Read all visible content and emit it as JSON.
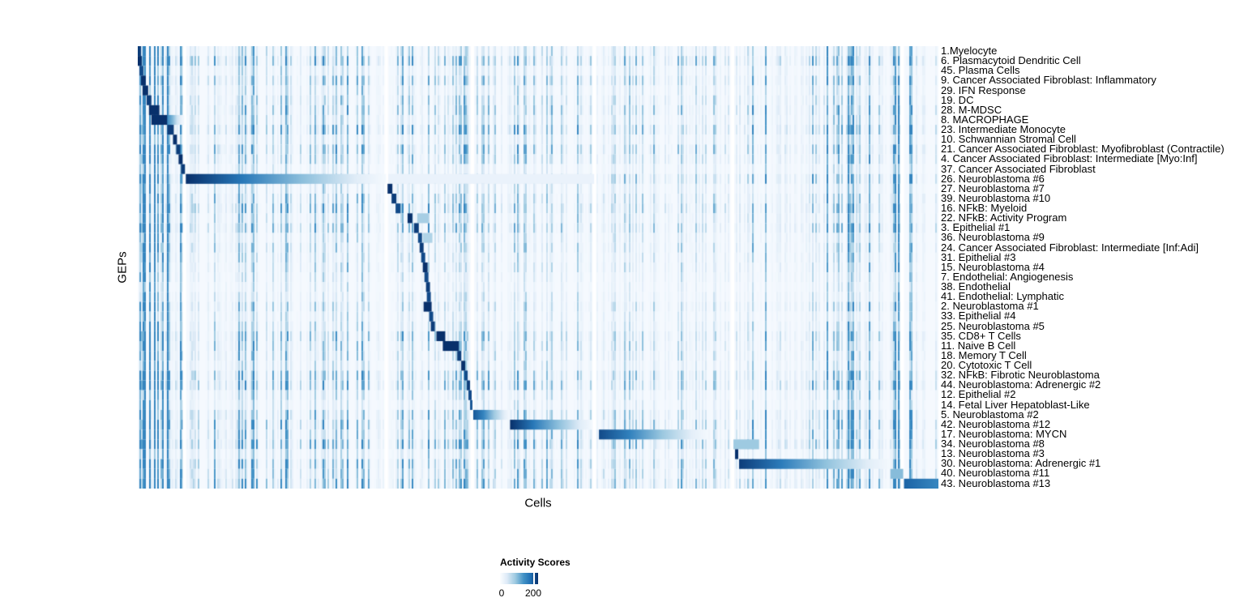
{
  "chart_data": {
    "type": "heatmap",
    "title": "",
    "xlabel": "Cells",
    "ylabel": "GEPs",
    "legend": {
      "title": "Activity Scores",
      "tick_labels": [
        "0",
        "200"
      ],
      "tick_values": [
        0,
        200
      ]
    },
    "colormap": {
      "name": "Blues",
      "low": "#f7fbff",
      "high": "#08306b"
    },
    "value_range": [
      0,
      220
    ],
    "rows": [
      "1.Myelocyte",
      "6. Plasmacytoid Dendritic Cell",
      "45. Plasma Cells",
      "9. Cancer Associated Fibroblast: Inflammatory",
      "29. IFN Response",
      "19. DC",
      "28. M-MDSC",
      "8. MACROPHAGE",
      "23. Intermediate Monocyte",
      "10. Schwannian Stromal Cell",
      "21. Cancer Associated Fibroblast: Myofibroblast (Contractile)",
      "4. Cancer Associated Fibroblast: Intermediate [Myo:Inf]",
      "37. Cancer Associated Fibroblast",
      "26. Neuroblastoma #6",
      "27. Neuroblastoma #7",
      "39. Neuroblastoma #10",
      "16. NFkB: Myeloid",
      "22. NFkB: Activity Program",
      "3. Epithelial #1",
      "36. Neuroblastoma #9",
      "24. Cancer Associated Fibroblast: Intermediate [Inf:Adi]",
      "31. Epithelial #3",
      "15. Neuroblastoma #4",
      "7. Endothelial: Angiogenesis",
      "38. Endothelial",
      "41. Endothelial: Lymphatic",
      "2. Neuroblastoma #1",
      "33. Epithelial #4",
      "25. Neuroblastoma #5",
      "35. CD8+ T Cells",
      "11. Naive B Cell",
      "18. Memory T Cell",
      "20. Cytotoxic T Cell",
      "32. NFkB: Fibrotic Neuroblastoma",
      "44. Neuroblastoma: Adrenergic #2",
      "12. Epithelial #2",
      "14. Fetal Liver Hepatoblast-Like",
      "5. Neuroblastoma #2",
      "42. Neuroblastoma #12",
      "17. Neuroblastoma: MYCN",
      "34. Neuroblastoma #8",
      "13. Neuroblastoma #3",
      "30. Neuroblastoma: Adrenergic #1",
      "40. Neuroblastoma #11",
      "43. Neuroblastoma #13"
    ],
    "row_blocks": [
      {
        "row": 0,
        "x0": 0.0,
        "x1": 0.004,
        "v": 0.95
      },
      {
        "row": 1,
        "x0": 0.0,
        "x1": 0.005,
        "v": 1.0
      },
      {
        "row": 2,
        "x0": 0.002,
        "x1": 0.007,
        "v": 0.9
      },
      {
        "row": 3,
        "x0": 0.004,
        "x1": 0.01,
        "v": 1.0
      },
      {
        "row": 4,
        "x0": 0.006,
        "x1": 0.013,
        "v": 1.0
      },
      {
        "row": 5,
        "x0": 0.011,
        "x1": 0.017,
        "v": 0.95
      },
      {
        "row": 6,
        "x0": 0.014,
        "x1": 0.027,
        "v": 1.0
      },
      {
        "row": 7,
        "x0": 0.017,
        "x1": 0.037,
        "v": 1.0
      },
      {
        "row": 7,
        "x0": 0.037,
        "x1": 0.058,
        "v": 0.55,
        "fade": true
      },
      {
        "row": 8,
        "x0": 0.037,
        "x1": 0.045,
        "v": 0.95
      },
      {
        "row": 9,
        "x0": 0.044,
        "x1": 0.049,
        "v": 1.0
      },
      {
        "row": 10,
        "x0": 0.048,
        "x1": 0.053,
        "v": 0.95
      },
      {
        "row": 11,
        "x0": 0.051,
        "x1": 0.056,
        "v": 1.0
      },
      {
        "row": 12,
        "x0": 0.054,
        "x1": 0.059,
        "v": 0.95
      },
      {
        "row": 13,
        "x0": 0.06,
        "x1": 0.31,
        "v": 1.0,
        "fade": true
      },
      {
        "row": 13,
        "x0": 0.313,
        "x1": 0.57,
        "v": 0.08
      },
      {
        "row": 14,
        "x0": 0.312,
        "x1": 0.318,
        "v": 1.0
      },
      {
        "row": 15,
        "x0": 0.317,
        "x1": 0.323,
        "v": 0.95
      },
      {
        "row": 16,
        "x0": 0.322,
        "x1": 0.328,
        "v": 0.9
      },
      {
        "row": 17,
        "x0": 0.337,
        "x1": 0.343,
        "v": 1.0
      },
      {
        "row": 17,
        "x0": 0.349,
        "x1": 0.363,
        "v": 0.28
      },
      {
        "row": 18,
        "x0": 0.345,
        "x1": 0.351,
        "v": 0.95
      },
      {
        "row": 19,
        "x0": 0.35,
        "x1": 0.355,
        "v": 0.9
      },
      {
        "row": 19,
        "x0": 0.356,
        "x1": 0.368,
        "v": 0.26
      },
      {
        "row": 20,
        "x0": 0.352,
        "x1": 0.357,
        "v": 0.95
      },
      {
        "row": 21,
        "x0": 0.354,
        "x1": 0.359,
        "v": 0.9
      },
      {
        "row": 22,
        "x0": 0.356,
        "x1": 0.362,
        "v": 1.0
      },
      {
        "row": 23,
        "x0": 0.358,
        "x1": 0.363,
        "v": 0.9
      },
      {
        "row": 24,
        "x0": 0.36,
        "x1": 0.365,
        "v": 0.95
      },
      {
        "row": 25,
        "x0": 0.361,
        "x1": 0.366,
        "v": 0.9
      },
      {
        "row": 26,
        "x0": 0.357,
        "x1": 0.367,
        "v": 1.0
      },
      {
        "row": 27,
        "x0": 0.364,
        "x1": 0.369,
        "v": 0.9
      },
      {
        "row": 28,
        "x0": 0.366,
        "x1": 0.371,
        "v": 0.95
      },
      {
        "row": 29,
        "x0": 0.373,
        "x1": 0.384,
        "v": 1.0
      },
      {
        "row": 30,
        "x0": 0.381,
        "x1": 0.401,
        "v": 1.0
      },
      {
        "row": 31,
        "x0": 0.399,
        "x1": 0.404,
        "v": 0.95
      },
      {
        "row": 32,
        "x0": 0.404,
        "x1": 0.409,
        "v": 1.0
      },
      {
        "row": 33,
        "x0": 0.408,
        "x1": 0.412,
        "v": 0.9
      },
      {
        "row": 34,
        "x0": 0.411,
        "x1": 0.415,
        "v": 0.95
      },
      {
        "row": 35,
        "x0": 0.413,
        "x1": 0.417,
        "v": 0.9
      },
      {
        "row": 36,
        "x0": 0.415,
        "x1": 0.418,
        "v": 0.85
      },
      {
        "row": 37,
        "x0": 0.419,
        "x1": 0.465,
        "v": 0.85,
        "fade": true
      },
      {
        "row": 38,
        "x0": 0.465,
        "x1": 0.568,
        "v": 1.0,
        "fade": true
      },
      {
        "row": 39,
        "x0": 0.576,
        "x1": 0.712,
        "v": 0.9,
        "fade": true
      },
      {
        "row": 40,
        "x0": 0.744,
        "x1": 0.776,
        "v": 0.3
      },
      {
        "row": 41,
        "x0": 0.746,
        "x1": 0.75,
        "v": 1.0
      },
      {
        "row": 42,
        "x0": 0.751,
        "x1": 0.94,
        "v": 0.95,
        "fade": true
      },
      {
        "row": 43,
        "x0": 0.94,
        "x1": 0.956,
        "v": 0.35
      },
      {
        "row": 44,
        "x0": 0.957,
        "x1": 1.12,
        "v": 0.8,
        "fade": true
      }
    ],
    "column_gaps": [
      0.058,
      0.31,
      0.4175,
      0.57,
      0.7425,
      0.9545
    ],
    "row_texture": [
      0.35,
      0.55,
      0.3,
      0.45,
      0.3,
      0.4,
      0.45,
      0.35,
      0.55,
      0.3,
      0.5,
      0.4,
      0.25,
      0.5,
      0.3,
      0.4,
      0.5,
      0.35,
      0.5,
      0.3,
      0.35,
      0.3,
      0.3,
      0.25,
      0.2,
      0.25,
      0.35,
      0.25,
      0.3,
      0.45,
      0.4,
      0.35,
      0.3,
      0.5,
      0.55,
      0.3,
      0.25,
      0.45,
      0.5,
      0.45,
      0.6,
      0.3,
      0.5,
      0.45,
      0.55
    ]
  }
}
